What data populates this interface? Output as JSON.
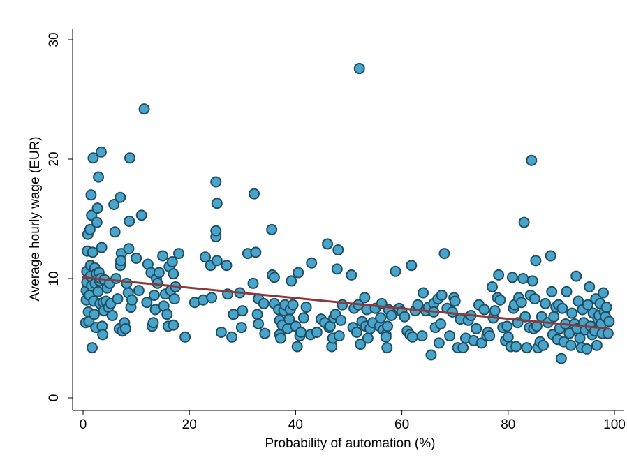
{
  "chart_data": {
    "type": "scatter",
    "xlabel": "Probability of automation (%)",
    "ylabel": "Average hourly wage (EUR)",
    "xlim": [
      0,
      100
    ],
    "ylim": [
      0,
      30
    ],
    "xticks": [
      0,
      20,
      40,
      60,
      80,
      100
    ],
    "yticks": [
      0,
      10,
      20,
      30
    ],
    "xtick_labels": [
      "0",
      "20",
      "40",
      "60",
      "80",
      "100"
    ],
    "ytick_labels": [
      "0",
      "10",
      "20",
      "30"
    ],
    "grid": false,
    "legend": "none",
    "colors": {
      "point_fill": "#48a5c9",
      "point_stroke": "#1f4f66",
      "fit_line": "#8a3a3a",
      "axis": "#000000"
    },
    "fit_line": {
      "x": [
        0,
        99
      ],
      "y": [
        10.1,
        5.8
      ]
    },
    "series": [
      {
        "points": [
          [
            0.5,
            6.3
          ],
          [
            0.6,
            8.2
          ],
          [
            0.6,
            9.0
          ],
          [
            0.7,
            9.7
          ],
          [
            0.7,
            10.6
          ],
          [
            0.8,
            12.3
          ],
          [
            0.9,
            13.7
          ],
          [
            1.0,
            7.2
          ],
          [
            1.1,
            6.4
          ],
          [
            1.2,
            8.6
          ],
          [
            1.3,
            14.1
          ],
          [
            1.4,
            10.2
          ],
          [
            1.4,
            11.1
          ],
          [
            1.5,
            17.0
          ],
          [
            1.6,
            15.3
          ],
          [
            1.6,
            9.4
          ],
          [
            1.7,
            4.2
          ],
          [
            1.8,
            12.2
          ],
          [
            1.9,
            20.1
          ],
          [
            2.0,
            8.1
          ],
          [
            2.1,
            7.0
          ],
          [
            2.2,
            10.9
          ],
          [
            2.3,
            9.6
          ],
          [
            2.4,
            5.9
          ],
          [
            2.5,
            10.4
          ],
          [
            2.6,
            14.7
          ],
          [
            2.7,
            15.9
          ],
          [
            2.8,
            8.9
          ],
          [
            2.9,
            18.5
          ],
          [
            3.0,
            10.5
          ],
          [
            3.1,
            9.8
          ],
          [
            3.2,
            7.9
          ],
          [
            3.3,
            10.0
          ],
          [
            3.4,
            20.6
          ],
          [
            3.5,
            12.6
          ],
          [
            3.6,
            6.0
          ],
          [
            3.7,
            5.3
          ],
          [
            3.8,
            8.0
          ],
          [
            3.9,
            7.3
          ],
          [
            4.0,
            9.9
          ],
          [
            4.3,
            8.1
          ],
          [
            4.5,
            9.2
          ],
          [
            4.8,
            7.6
          ],
          [
            5.0,
            9.6
          ],
          [
            5.2,
            7.9
          ],
          [
            5.5,
            6.9
          ],
          [
            5.8,
            16.2
          ],
          [
            6.0,
            13.9
          ],
          [
            6.2,
            10.0
          ],
          [
            6.5,
            8.3
          ],
          [
            6.8,
            5.8
          ],
          [
            7.0,
            11.1
          ],
          [
            7.2,
            12.1
          ],
          [
            7.0,
            16.8
          ],
          [
            7.1,
            11.5
          ],
          [
            7.4,
            5.6
          ],
          [
            7.8,
            6.3
          ],
          [
            8.0,
            5.8
          ],
          [
            8.2,
            9.6
          ],
          [
            8.5,
            8.8
          ],
          [
            8.6,
            12.5
          ],
          [
            8.7,
            14.8
          ],
          [
            8.8,
            20.1
          ],
          [
            9.0,
            7.6
          ],
          [
            9.2,
            8.2
          ],
          [
            10.0,
            11.7
          ],
          [
            10.5,
            9.0
          ],
          [
            11.0,
            15.3
          ],
          [
            11.5,
            24.2
          ],
          [
            12.0,
            8.0
          ],
          [
            12.2,
            11.2
          ],
          [
            12.8,
            10.5
          ],
          [
            13.0,
            6.0
          ],
          [
            13.2,
            6.3
          ],
          [
            13.4,
            8.6
          ],
          [
            13.6,
            7.4
          ],
          [
            13.8,
            10.0
          ],
          [
            14.0,
            9.6
          ],
          [
            14.3,
            10.5
          ],
          [
            15.0,
            11.9
          ],
          [
            15.2,
            7.7
          ],
          [
            15.5,
            8.7
          ],
          [
            15.8,
            7.0
          ],
          [
            16.0,
            6.0
          ],
          [
            16.2,
            11.0
          ],
          [
            16.5,
            9.0
          ],
          [
            16.8,
            11.4
          ],
          [
            17.0,
            10.4
          ],
          [
            17.0,
            6.1
          ],
          [
            17.2,
            8.3
          ],
          [
            17.4,
            9.3
          ],
          [
            18.0,
            12.1
          ],
          [
            19.2,
            5.1
          ],
          [
            21.0,
            8.0
          ],
          [
            22.6,
            8.2
          ],
          [
            23.0,
            11.8
          ],
          [
            24.0,
            11.1
          ],
          [
            24.2,
            8.4
          ],
          [
            25.0,
            18.1
          ],
          [
            25.0,
            13.5
          ],
          [
            25.0,
            14.0
          ],
          [
            25.2,
            16.3
          ],
          [
            25.2,
            11.5
          ],
          [
            26.0,
            5.5
          ],
          [
            27.0,
            11.1
          ],
          [
            27.2,
            8.7
          ],
          [
            28.0,
            5.1
          ],
          [
            28.3,
            7.0
          ],
          [
            29.5,
            8.8
          ],
          [
            29.8,
            5.9
          ],
          [
            30.0,
            7.3
          ],
          [
            31.0,
            12.1
          ],
          [
            32.0,
            9.6
          ],
          [
            32.2,
            17.1
          ],
          [
            32.5,
            12.2
          ],
          [
            32.8,
            7.0
          ],
          [
            33.0,
            6.2
          ],
          [
            33.0,
            8.3
          ],
          [
            34.0,
            7.9
          ],
          [
            34.2,
            5.4
          ],
          [
            35.5,
            14.1
          ],
          [
            35.6,
            10.3
          ],
          [
            36.0,
            10.1
          ],
          [
            36.0,
            7.9
          ],
          [
            36.8,
            7.4
          ],
          [
            37.0,
            6.5
          ],
          [
            37.0,
            5.3
          ],
          [
            37.2,
            5.0
          ],
          [
            37.5,
            6.1
          ],
          [
            37.8,
            7.3
          ],
          [
            38.0,
            7.8
          ],
          [
            38.5,
            5.8
          ],
          [
            38.8,
            6.6
          ],
          [
            39.0,
            7.4
          ],
          [
            39.5,
            7.8
          ],
          [
            39.2,
            9.8
          ],
          [
            40.0,
            6.0
          ],
          [
            40.3,
            4.3
          ],
          [
            40.5,
            10.5
          ],
          [
            40.8,
            5.2
          ],
          [
            41.0,
            5.5
          ],
          [
            41.5,
            6.7
          ],
          [
            42.0,
            7.6
          ],
          [
            42.8,
            5.3
          ],
          [
            43.0,
            11.3
          ],
          [
            44.0,
            5.5
          ],
          [
            44.8,
            6.6
          ],
          [
            45.5,
            6.3
          ],
          [
            46.0,
            12.9
          ],
          [
            46.3,
            5.9
          ],
          [
            46.5,
            6.0
          ],
          [
            46.8,
            4.3
          ],
          [
            47.0,
            5.0
          ],
          [
            47.2,
            6.7
          ],
          [
            47.5,
            7.0
          ],
          [
            47.8,
            10.8
          ],
          [
            48.0,
            12.4
          ],
          [
            48.2,
            5.2
          ],
          [
            48.5,
            6.5
          ],
          [
            48.8,
            7.8
          ],
          [
            50.5,
            10.3
          ],
          [
            50.8,
            5.9
          ],
          [
            51.0,
            7.5
          ],
          [
            51.5,
            5.5
          ],
          [
            51.8,
            7.8
          ],
          [
            52.0,
            27.6
          ],
          [
            52.2,
            4.5
          ],
          [
            52.5,
            6.4
          ],
          [
            53.0,
            8.4
          ],
          [
            53.2,
            6.0
          ],
          [
            53.4,
            7.4
          ],
          [
            53.6,
            5.0
          ],
          [
            54.0,
            5.8
          ],
          [
            54.5,
            6.3
          ],
          [
            55.0,
            7.5
          ],
          [
            55.8,
            6.0
          ],
          [
            56.0,
            6.7
          ],
          [
            56.2,
            7.9
          ],
          [
            56.5,
            5.7
          ],
          [
            57.0,
            5.3
          ],
          [
            57.0,
            5.1
          ],
          [
            57.2,
            4.2
          ],
          [
            57.3,
            6.0
          ],
          [
            57.5,
            7.4
          ],
          [
            58.0,
            6.9
          ],
          [
            58.8,
            10.6
          ],
          [
            59.5,
            7.5
          ],
          [
            60.0,
            7.2
          ],
          [
            60.5,
            6.8
          ],
          [
            61.0,
            5.6
          ],
          [
            61.5,
            5.3
          ],
          [
            61.8,
            11.1
          ],
          [
            62.0,
            5.1
          ],
          [
            62.5,
            7.3
          ],
          [
            63.0,
            7.8
          ],
          [
            63.8,
            5.2
          ],
          [
            64.0,
            8.8
          ],
          [
            64.5,
            7.3
          ],
          [
            65.0,
            7.6
          ],
          [
            65.5,
            3.6
          ],
          [
            66.0,
            7.9
          ],
          [
            66.0,
            7.2
          ],
          [
            66.3,
            5.9
          ],
          [
            66.8,
            8.3
          ],
          [
            67.0,
            4.6
          ],
          [
            67.3,
            6.2
          ],
          [
            67.5,
            8.6
          ],
          [
            68.0,
            12.1
          ],
          [
            68.5,
            7.5
          ],
          [
            69.0,
            5.2
          ],
          [
            69.5,
            7.2
          ],
          [
            69.8,
            8.4
          ],
          [
            70.0,
            8.1
          ],
          [
            70.5,
            4.2
          ],
          [
            71.0,
            6.6
          ],
          [
            71.5,
            4.2
          ],
          [
            72.0,
            5.0
          ],
          [
            72.5,
            6.5
          ],
          [
            73.0,
            6.9
          ],
          [
            73.5,
            4.8
          ],
          [
            74.0,
            5.8
          ],
          [
            74.5,
            7.8
          ],
          [
            75.0,
            4.6
          ],
          [
            75.5,
            7.4
          ],
          [
            76.0,
            5.2
          ],
          [
            76.2,
            5.5
          ],
          [
            76.5,
            5.2
          ],
          [
            77.0,
            9.3
          ],
          [
            77.2,
            6.7
          ],
          [
            77.5,
            7.3
          ],
          [
            78.0,
            8.4
          ],
          [
            78.2,
            10.3
          ],
          [
            78.5,
            8.2
          ],
          [
            79.0,
            5.9
          ],
          [
            79.5,
            4.8
          ],
          [
            79.8,
            6.0
          ],
          [
            80.0,
            5.1
          ],
          [
            80.5,
            4.3
          ],
          [
            80.8,
            10.1
          ],
          [
            81.0,
            7.5
          ],
          [
            81.2,
            7.8
          ],
          [
            81.5,
            4.3
          ],
          [
            81.8,
            6.3
          ],
          [
            82.0,
            8.4
          ],
          [
            82.5,
            8.0
          ],
          [
            82.8,
            10.0
          ],
          [
            83.0,
            14.7
          ],
          [
            83.2,
            6.8
          ],
          [
            83.5,
            4.2
          ],
          [
            84.0,
            5.9
          ],
          [
            84.2,
            8.6
          ],
          [
            84.4,
            19.9
          ],
          [
            84.6,
            9.8
          ],
          [
            84.8,
            5.8
          ],
          [
            85.0,
            8.3
          ],
          [
            85.2,
            11.5
          ],
          [
            85.4,
            6.0
          ],
          [
            85.6,
            4.2
          ],
          [
            86.0,
            4.7
          ],
          [
            86.3,
            6.8
          ],
          [
            86.6,
            4.4
          ],
          [
            87.0,
            7.9
          ],
          [
            87.5,
            6.3
          ],
          [
            88.0,
            11.9
          ],
          [
            88.2,
            8.9
          ],
          [
            88.4,
            5.3
          ],
          [
            88.6,
            6.8
          ],
          [
            89.0,
            7.6
          ],
          [
            89.3,
            4.9
          ],
          [
            89.5,
            7.8
          ],
          [
            89.7,
            5.8
          ],
          [
            90.0,
            3.3
          ],
          [
            90.2,
            7.5
          ],
          [
            90.5,
            4.7
          ],
          [
            90.8,
            6.2
          ],
          [
            91.0,
            8.9
          ],
          [
            91.5,
            5.4
          ],
          [
            91.8,
            4.4
          ],
          [
            92.0,
            7.1
          ],
          [
            92.5,
            6.2
          ],
          [
            92.8,
            10.2
          ],
          [
            93.0,
            5.8
          ],
          [
            93.2,
            8.1
          ],
          [
            93.5,
            5.0
          ],
          [
            93.8,
            4.2
          ],
          [
            94.0,
            7.4
          ],
          [
            94.2,
            6.3
          ],
          [
            94.5,
            5.7
          ],
          [
            94.8,
            4.1
          ],
          [
            95.0,
            7.8
          ],
          [
            95.3,
            9.3
          ],
          [
            95.5,
            6.0
          ],
          [
            95.8,
            5.3
          ],
          [
            96.0,
            7.1
          ],
          [
            96.3,
            5.6
          ],
          [
            96.5,
            8.3
          ],
          [
            96.7,
            4.4
          ],
          [
            96.9,
            6.6
          ],
          [
            97.1,
            6.9
          ],
          [
            97.3,
            7.9
          ],
          [
            97.5,
            6.2
          ],
          [
            97.7,
            5.4
          ],
          [
            97.9,
            8.8
          ],
          [
            98.1,
            7.2
          ],
          [
            98.3,
            6.8
          ],
          [
            98.5,
            7.6
          ],
          [
            98.8,
            5.4
          ],
          [
            99.0,
            6.4
          ]
        ]
      }
    ]
  }
}
